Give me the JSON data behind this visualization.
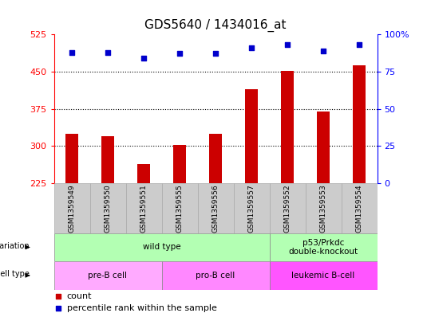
{
  "title": "GDS5640 / 1434016_at",
  "samples": [
    "GSM1359549",
    "GSM1359550",
    "GSM1359551",
    "GSM1359555",
    "GSM1359556",
    "GSM1359557",
    "GSM1359552",
    "GSM1359553",
    "GSM1359554"
  ],
  "counts": [
    325,
    320,
    263,
    302,
    325,
    415,
    452,
    370,
    462
  ],
  "percentile_ranks": [
    88,
    88,
    84,
    87,
    87,
    91,
    93,
    89,
    93
  ],
  "ylim_left": [
    225,
    525
  ],
  "ylim_right": [
    0,
    100
  ],
  "yticks_left": [
    225,
    300,
    375,
    450,
    525
  ],
  "yticks_right": [
    0,
    25,
    50,
    75,
    100
  ],
  "bar_color": "#cc0000",
  "dot_color": "#0000cc",
  "bar_width": 0.35,
  "grid_yticks": [
    300,
    375,
    450
  ],
  "geno_groups": [
    {
      "label": "wild type",
      "start": 0,
      "end": 6,
      "color": "#b3ffb3"
    },
    {
      "label": "p53/Prkdc\ndouble-knockout",
      "start": 6,
      "end": 9,
      "color": "#b3ffb3"
    }
  ],
  "cell_groups": [
    {
      "label": "pre-B cell",
      "start": 0,
      "end": 3,
      "color": "#ffaaff"
    },
    {
      "label": "pro-B cell",
      "start": 3,
      "end": 6,
      "color": "#ff88ff"
    },
    {
      "label": "leukemic B-cell",
      "start": 6,
      "end": 9,
      "color": "#ff55ff"
    }
  ]
}
